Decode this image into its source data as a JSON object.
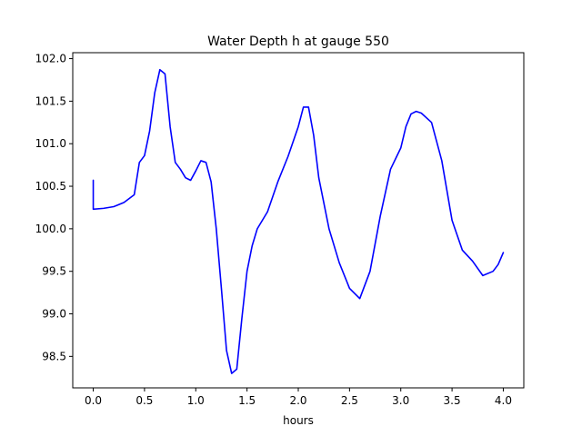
{
  "chart_data": {
    "type": "line",
    "title": "Water Depth h at gauge 550",
    "xlabel": "hours",
    "ylabel": "",
    "xlim": [
      -0.2,
      4.2
    ],
    "ylim": [
      98.13,
      102.07
    ],
    "x_ticks": [
      0.0,
      0.5,
      1.0,
      1.5,
      2.0,
      2.5,
      3.0,
      3.5,
      4.0
    ],
    "x_tick_labels": [
      "0.0",
      "0.5",
      "1.0",
      "1.5",
      "2.0",
      "2.5",
      "3.0",
      "3.5",
      "4.0"
    ],
    "y_ticks": [
      98.5,
      99.0,
      99.5,
      100.0,
      100.5,
      101.0,
      101.5,
      102.0
    ],
    "y_tick_labels": [
      "98.5",
      "99.0",
      "99.5",
      "100.0",
      "100.5",
      "101.0",
      "101.5",
      "102.0"
    ],
    "grid": false,
    "series": [
      {
        "color": "#0000ff",
        "x": [
          0.0,
          0.0,
          0.1,
          0.2,
          0.3,
          0.4,
          0.45,
          0.5,
          0.55,
          0.6,
          0.65,
          0.7,
          0.75,
          0.8,
          0.85,
          0.9,
          0.95,
          1.0,
          1.05,
          1.1,
          1.15,
          1.2,
          1.25,
          1.3,
          1.35,
          1.4,
          1.45,
          1.5,
          1.55,
          1.6,
          1.7,
          1.8,
          1.9,
          2.0,
          2.05,
          2.1,
          2.15,
          2.2,
          2.3,
          2.4,
          2.5,
          2.6,
          2.7,
          2.8,
          2.9,
          3.0,
          3.05,
          3.1,
          3.15,
          3.2,
          3.3,
          3.4,
          3.5,
          3.6,
          3.7,
          3.8,
          3.9,
          3.95,
          4.0
        ],
        "y": [
          100.57,
          100.23,
          100.24,
          100.26,
          100.31,
          100.4,
          100.78,
          100.86,
          101.15,
          101.6,
          101.87,
          101.82,
          101.2,
          100.78,
          100.7,
          100.6,
          100.57,
          100.68,
          100.8,
          100.78,
          100.55,
          100.0,
          99.3,
          98.57,
          98.3,
          98.35,
          98.95,
          99.5,
          99.8,
          100.0,
          100.2,
          100.55,
          100.85,
          101.2,
          101.43,
          101.43,
          101.1,
          100.6,
          100.0,
          99.6,
          99.3,
          99.18,
          99.5,
          100.15,
          100.7,
          100.95,
          101.2,
          101.35,
          101.38,
          101.36,
          101.25,
          100.8,
          100.1,
          99.75,
          99.62,
          99.45,
          99.5,
          99.58,
          99.72
        ]
      }
    ]
  }
}
